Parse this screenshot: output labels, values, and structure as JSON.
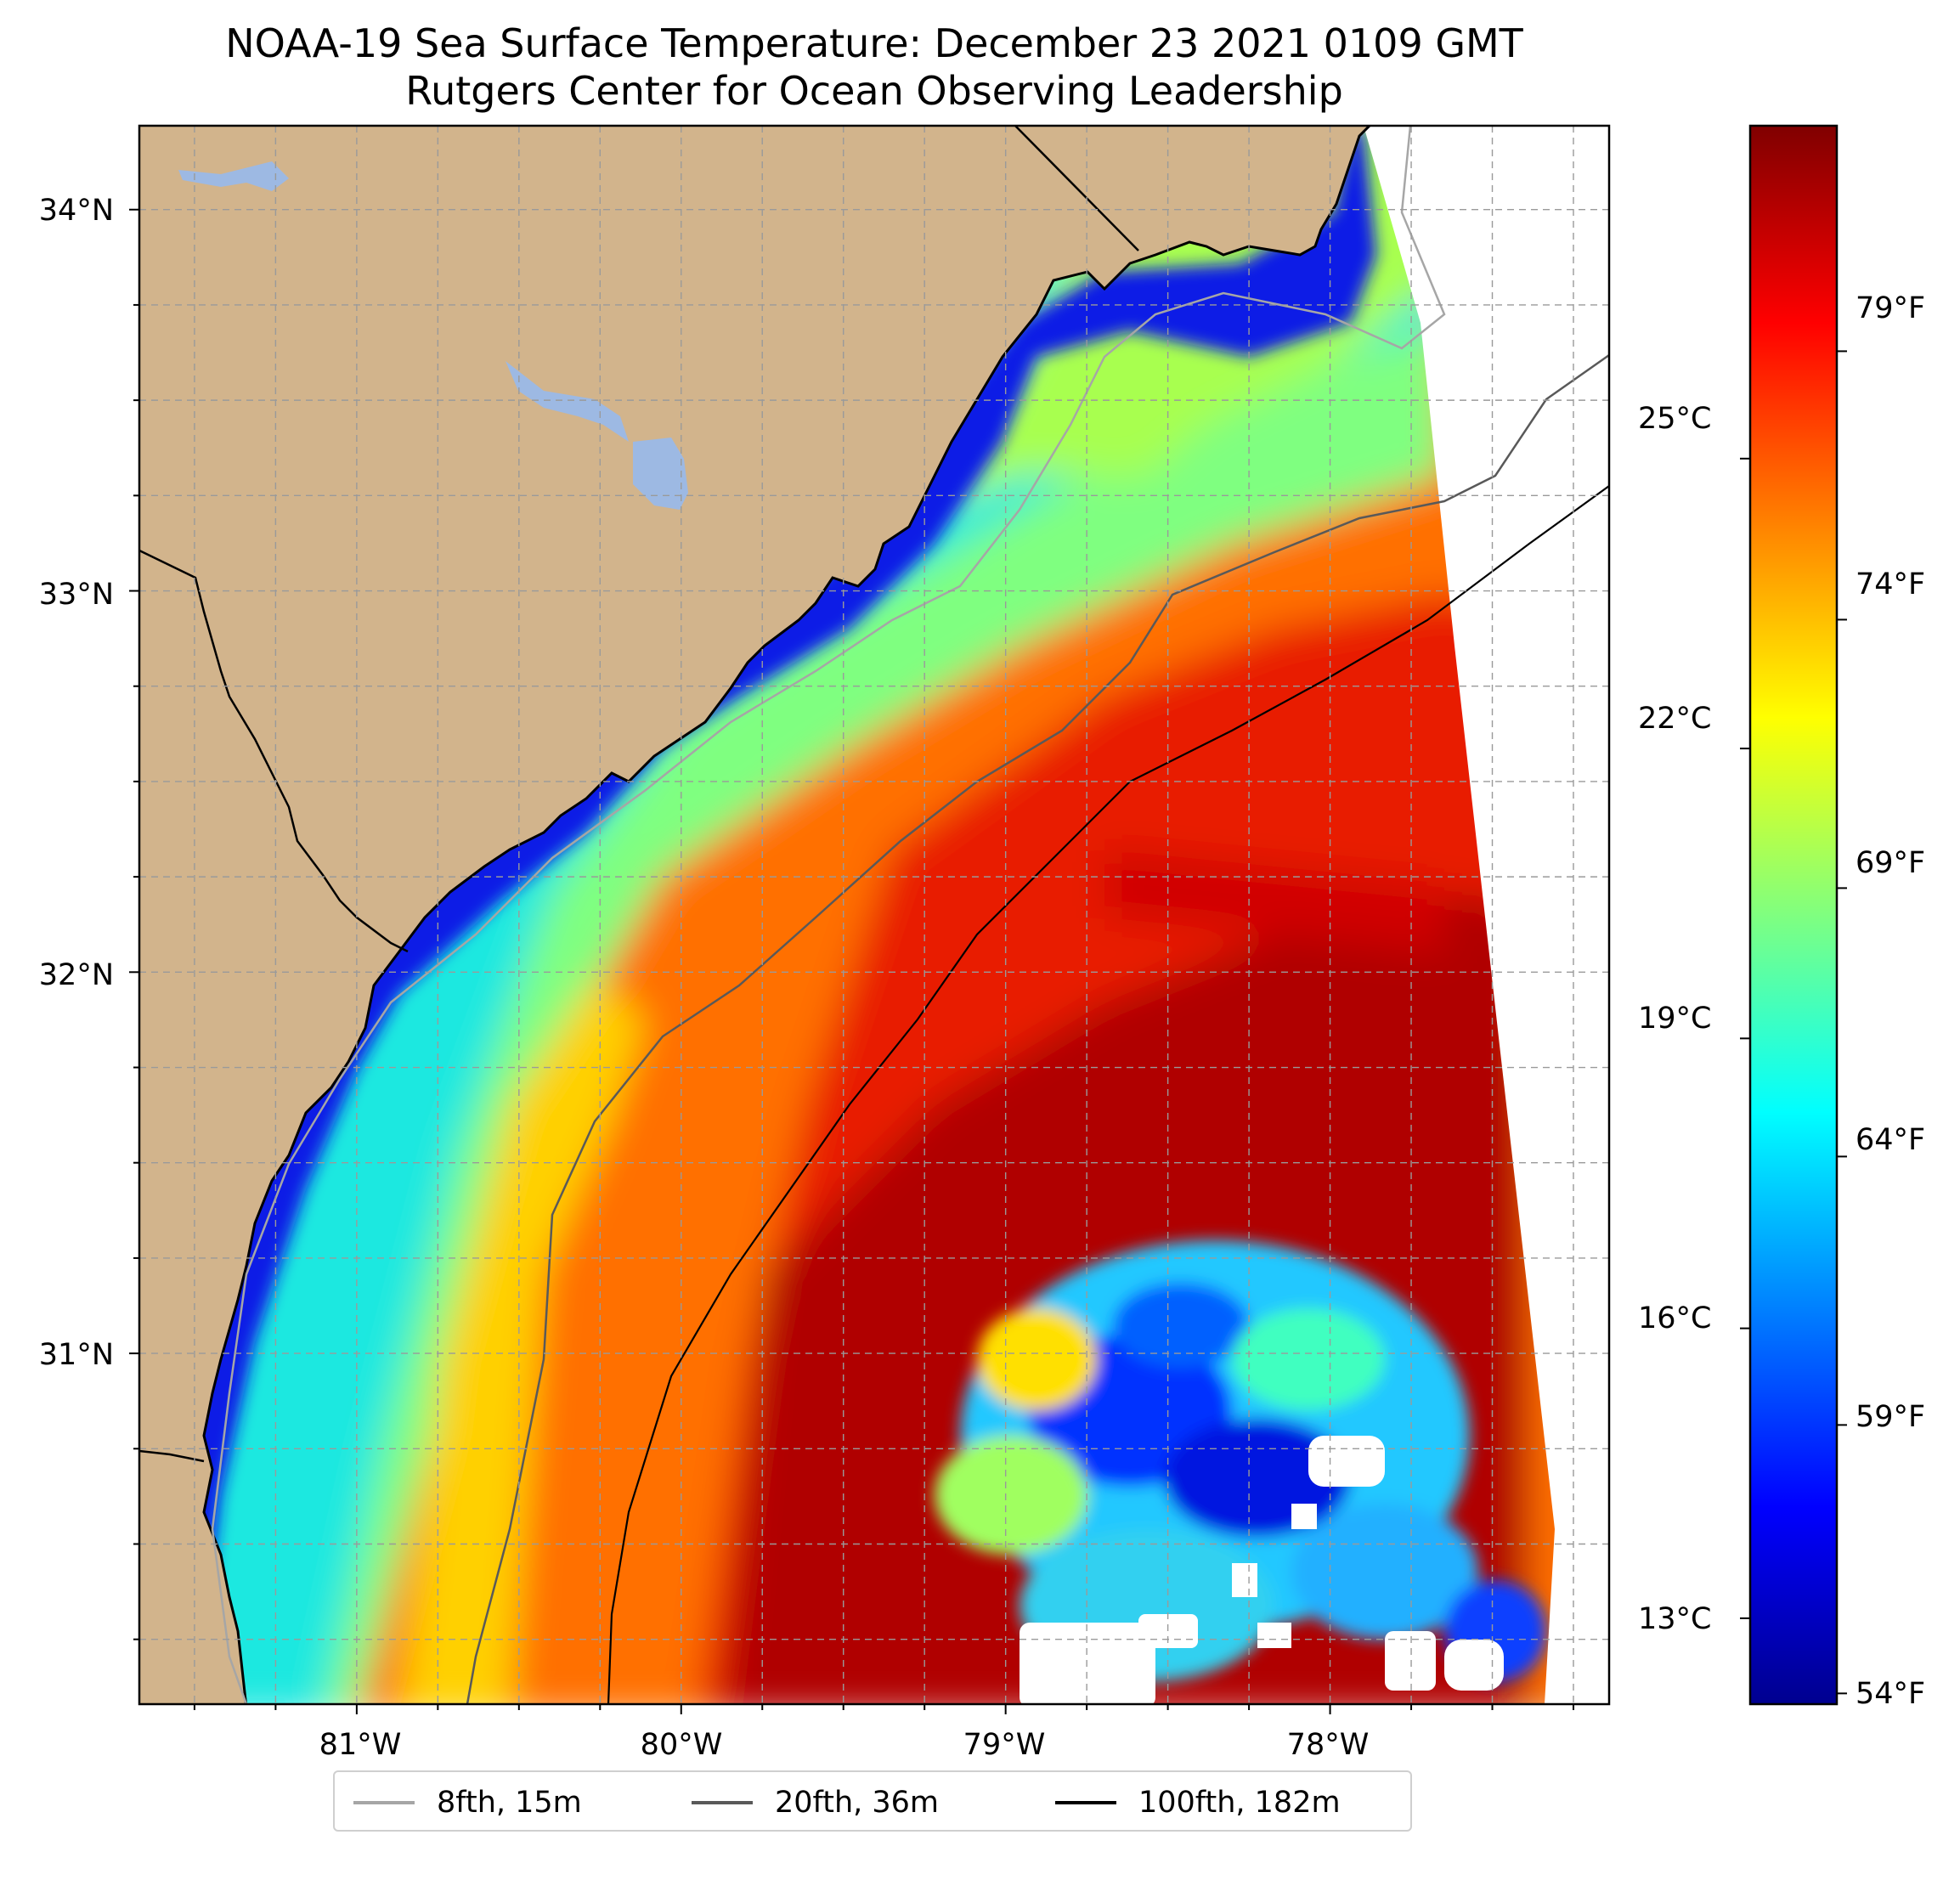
{
  "title": {
    "line1": "NOAA-19 Sea Surface Temperature: December 23 2021 0109 GMT",
    "line2": "Rutgers Center for Ocean Observing Leadership"
  },
  "map": {
    "lon_range": [
      -81.67,
      -77.14
    ],
    "lat_range": [
      30.08,
      34.22
    ],
    "gridlines": true,
    "land_color": "#D2B48C",
    "lake_color": "#9DB9E3",
    "lat_ticks": [
      {
        "value": 34,
        "label": "34°N"
      },
      {
        "value": 33,
        "label": "33°N"
      },
      {
        "value": 32,
        "label": "32°N"
      },
      {
        "value": 31,
        "label": "31°N"
      }
    ],
    "lon_ticks": [
      {
        "value": -81,
        "label": "81°W"
      },
      {
        "value": -80,
        "label": "80°W"
      },
      {
        "value": -79,
        "label": "79°W"
      },
      {
        "value": -78,
        "label": "78°W"
      }
    ]
  },
  "colorbar": {
    "colormap": "jet",
    "range_f": [
      53.8,
      83.2
    ],
    "celsius_ticks": [
      "25°C",
      "22°C",
      "19°C",
      "16°C",
      "13°C"
    ],
    "fahrenheit_ticks": [
      "79°F",
      "74°F",
      "69°F",
      "64°F",
      "59°F",
      "54°F"
    ]
  },
  "legend": [
    {
      "label": "8fth, 15m",
      "color": "#A6A6A6"
    },
    {
      "label": "20fth, 36m",
      "color": "#595959"
    },
    {
      "label": "100fth, 182m",
      "color": "#000000"
    }
  ]
}
